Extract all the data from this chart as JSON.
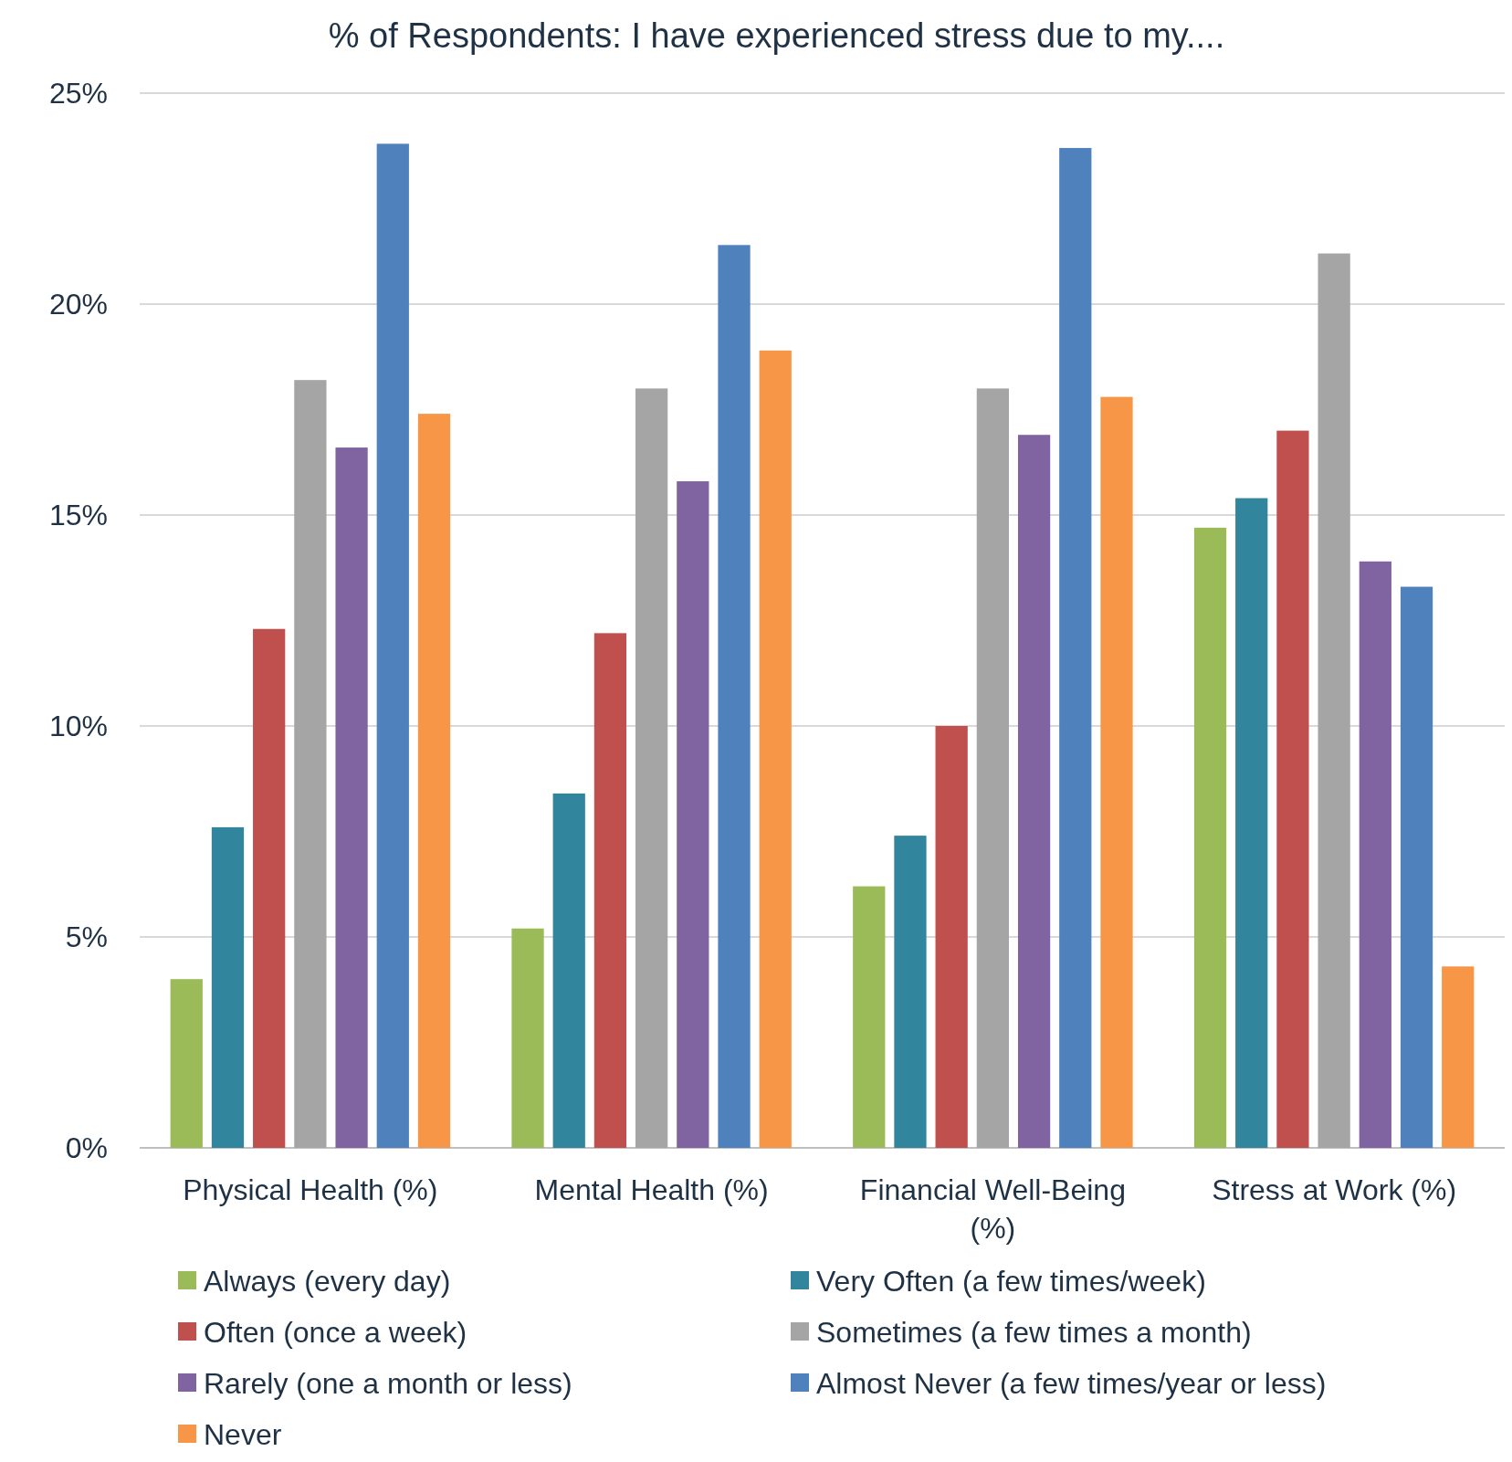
{
  "chart_data": {
    "type": "bar",
    "title": "% of Respondents: I have experienced stress due to my....",
    "categories": [
      "Physical Health (%)",
      "Mental Health (%)",
      "Financial Well-Being (%)",
      "Stress at Work (%)"
    ],
    "series": [
      {
        "name": "Always (every day)",
        "color": "#9bbb59",
        "values": [
          4.0,
          5.2,
          6.2,
          14.7
        ]
      },
      {
        "name": "Very Often (a few times/week)",
        "color": "#31859c",
        "values": [
          7.6,
          8.4,
          7.4,
          15.4
        ]
      },
      {
        "name": "Often (once a week)",
        "color": "#c0504d",
        "values": [
          12.3,
          12.2,
          10.0,
          17.0
        ]
      },
      {
        "name": "Sometimes (a few times a month)",
        "color": "#a5a5a5",
        "values": [
          18.2,
          18.0,
          18.0,
          21.2
        ]
      },
      {
        "name": "Rarely (one a month or less)",
        "color": "#8064a2",
        "values": [
          16.6,
          15.8,
          16.9,
          13.9
        ]
      },
      {
        "name": "Almost Never (a few times/year or less)",
        "color": "#4f81bd",
        "values": [
          23.8,
          21.4,
          23.7,
          13.3
        ]
      },
      {
        "name": "Never",
        "color": "#f79646",
        "values": [
          17.4,
          18.9,
          17.8,
          4.3
        ]
      }
    ],
    "ylim": [
      0,
      25
    ],
    "yticks": [
      {
        "value": 0,
        "label": "0%"
      },
      {
        "value": 5,
        "label": "5%"
      },
      {
        "value": 10,
        "label": "10%"
      },
      {
        "value": 15,
        "label": "15%"
      },
      {
        "value": 20,
        "label": "20%"
      },
      {
        "value": 25,
        "label": "25%"
      }
    ],
    "grid": "y",
    "legend": "bottom"
  }
}
